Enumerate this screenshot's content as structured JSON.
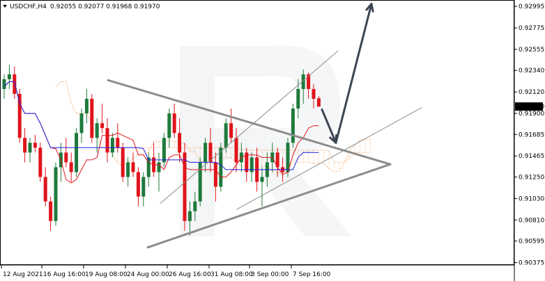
{
  "header": {
    "symbol_label": "USDCHF,H4",
    "ohlc_text": "0.92055 0.92077 0.91968 0.91970",
    "menu_icon": "triangle-down-icon"
  },
  "price_badge": "0.91970",
  "colors": {
    "bull": "#1f7a3c",
    "bear": "#e0141b",
    "tenkan": "#e0141b",
    "kijun": "#1f1fe0",
    "cloud": "#f5b27a",
    "trendline": "#8c8c8c",
    "arrow": "#3c4652",
    "badge_bg": "#000000",
    "badge_text": "#ffffff"
  },
  "chart_data": {
    "type": "candlestick",
    "title": "USDCHF,H4",
    "ohlc_last": {
      "open": 0.92055,
      "high": 0.92077,
      "low": 0.91968,
      "close": 0.9197
    },
    "y_ticks": [
      "0.92995",
      "0.92775",
      "0.92555",
      "0.92340",
      "0.92120",
      "0.91900",
      "0.91685",
      "0.91465",
      "0.91250",
      "0.91030",
      "0.90810",
      "0.90595",
      "0.90375"
    ],
    "ylim": [
      0.9035,
      0.9306
    ],
    "x_ticks": [
      "12 Aug 2021",
      "16 Aug 16:00",
      "19 Aug 08:00",
      "24 Aug 00:00",
      "26 Aug 16:00",
      "31 Aug 08:00",
      "3 Sep 00:00",
      "7 Sep 16:00"
    ],
    "candles": [
      [
        0.9215,
        0.923,
        0.9205,
        0.9225
      ],
      [
        0.9225,
        0.924,
        0.9215,
        0.923
      ],
      [
        0.923,
        0.9238,
        0.9205,
        0.921
      ],
      [
        0.921,
        0.9215,
        0.916,
        0.9165
      ],
      [
        0.9165,
        0.9175,
        0.914,
        0.915
      ],
      [
        0.915,
        0.9165,
        0.914,
        0.916
      ],
      [
        0.916,
        0.9168,
        0.915,
        0.9155
      ],
      [
        0.9155,
        0.916,
        0.912,
        0.9125
      ],
      [
        0.9125,
        0.9135,
        0.9095,
        0.91
      ],
      [
        0.91,
        0.9105,
        0.907,
        0.908
      ],
      [
        0.908,
        0.914,
        0.9075,
        0.9135
      ],
      [
        0.9135,
        0.916,
        0.912,
        0.915
      ],
      [
        0.915,
        0.9165,
        0.9135,
        0.914
      ],
      [
        0.914,
        0.915,
        0.912,
        0.913
      ],
      [
        0.913,
        0.9175,
        0.9125,
        0.917
      ],
      [
        0.917,
        0.9195,
        0.916,
        0.919
      ],
      [
        0.919,
        0.9215,
        0.918,
        0.9205
      ],
      [
        0.9205,
        0.921,
        0.916,
        0.9165
      ],
      [
        0.9165,
        0.9185,
        0.915,
        0.918
      ],
      [
        0.918,
        0.92,
        0.917,
        0.9175
      ],
      [
        0.9175,
        0.9185,
        0.914,
        0.915
      ],
      [
        0.915,
        0.917,
        0.9145,
        0.9165
      ],
      [
        0.9165,
        0.918,
        0.915,
        0.9155
      ],
      [
        0.9155,
        0.916,
        0.912,
        0.9125
      ],
      [
        0.9125,
        0.9145,
        0.9115,
        0.914
      ],
      [
        0.914,
        0.915,
        0.9125,
        0.913
      ],
      [
        0.913,
        0.9135,
        0.9095,
        0.9105
      ],
      [
        0.9105,
        0.913,
        0.9095,
        0.9125
      ],
      [
        0.9125,
        0.915,
        0.9115,
        0.9145
      ],
      [
        0.9145,
        0.916,
        0.9125,
        0.913
      ],
      [
        0.913,
        0.915,
        0.911,
        0.914
      ],
      [
        0.914,
        0.917,
        0.9135,
        0.9165
      ],
      [
        0.9165,
        0.9195,
        0.9155,
        0.919
      ],
      [
        0.919,
        0.92,
        0.9165,
        0.917
      ],
      [
        0.917,
        0.9185,
        0.914,
        0.915
      ],
      [
        0.915,
        0.916,
        0.907,
        0.908
      ],
      [
        0.908,
        0.91,
        0.9065,
        0.909
      ],
      [
        0.909,
        0.911,
        0.908,
        0.91
      ],
      [
        0.91,
        0.9145,
        0.9095,
        0.914
      ],
      [
        0.914,
        0.9165,
        0.913,
        0.916
      ],
      [
        0.916,
        0.9175,
        0.913,
        0.914
      ],
      [
        0.914,
        0.915,
        0.91,
        0.9115
      ],
      [
        0.9115,
        0.916,
        0.911,
        0.9155
      ],
      [
        0.9155,
        0.9185,
        0.915,
        0.918
      ],
      [
        0.918,
        0.9195,
        0.916,
        0.9165
      ],
      [
        0.9165,
        0.9175,
        0.913,
        0.914
      ],
      [
        0.914,
        0.916,
        0.913,
        0.915
      ],
      [
        0.915,
        0.9155,
        0.912,
        0.913
      ],
      [
        0.913,
        0.915,
        0.912,
        0.9145
      ],
      [
        0.9145,
        0.9155,
        0.911,
        0.912
      ],
      [
        0.912,
        0.9135,
        0.9095,
        0.9125
      ],
      [
        0.9125,
        0.915,
        0.9115,
        0.914
      ],
      [
        0.914,
        0.916,
        0.913,
        0.915
      ],
      [
        0.915,
        0.9155,
        0.9125,
        0.9135
      ],
      [
        0.9135,
        0.9145,
        0.912,
        0.913
      ],
      [
        0.913,
        0.9165,
        0.9125,
        0.916
      ],
      [
        0.916,
        0.92,
        0.9155,
        0.9195
      ],
      [
        0.9195,
        0.9225,
        0.9185,
        0.9215
      ],
      [
        0.9215,
        0.9235,
        0.92,
        0.923
      ],
      [
        0.923,
        0.9232,
        0.9205,
        0.9215
      ],
      [
        0.9215,
        0.922,
        0.9195,
        0.9205
      ],
      [
        0.92055,
        0.92077,
        0.91968,
        0.9197
      ]
    ],
    "annotations": [
      {
        "type": "trendline",
        "name": "descending-resistance",
        "points": [
          [
            "12 Aug 2021",
            0.9224
          ],
          [
            "7 Sep 16:00",
            0.9138
          ]
        ]
      },
      {
        "type": "trendline",
        "name": "ascending-support",
        "points": [
          [
            "12 Aug 2021",
            0.9053
          ],
          [
            "7 Sep 16:00",
            0.9138
          ]
        ]
      },
      {
        "type": "channel",
        "name": "upper-channel",
        "points": [
          [
            "19 Aug 08:00",
            0.9098
          ],
          [
            "7 Sep 16:00",
            0.9254
          ]
        ]
      },
      {
        "type": "channel",
        "name": "lower-channel",
        "points": [
          [
            "31 Aug 08:00",
            0.9092
          ],
          [
            "7 Sep 16:00",
            0.9196
          ]
        ]
      },
      {
        "type": "forecast-arrow",
        "name": "forecast-down-arrow",
        "points": [
          [
            "7 Sep 16:00",
            0.9194
          ],
          [
            "7 Sep 16:00",
            0.916
          ]
        ]
      },
      {
        "type": "forecast-arrow",
        "name": "forecast-up-arrow",
        "points": [
          [
            "7 Sep 16:00",
            0.916
          ],
          [
            "7 Sep 16:00",
            0.9302
          ]
        ]
      }
    ],
    "grid": false,
    "legend": "none"
  }
}
